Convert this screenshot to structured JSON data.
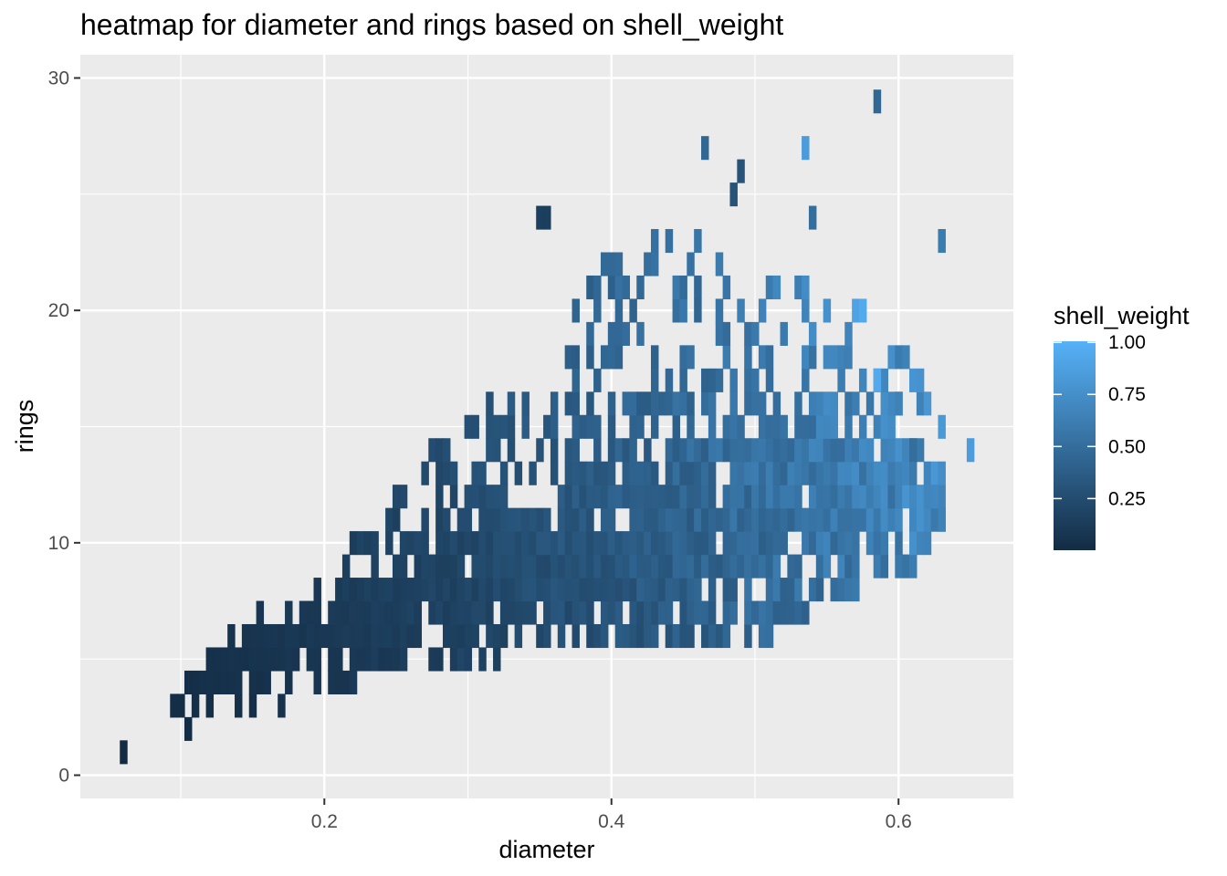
{
  "chart_data": {
    "type": "heatmap",
    "title": "heatmap for diameter and rings based on shell_weight",
    "xlabel": "diameter",
    "ylabel": "rings",
    "xlim": [
      0.03,
      0.68
    ],
    "ylim": [
      -1,
      31
    ],
    "x_ticks": [
      0.2,
      0.4,
      0.6
    ],
    "x_tick_labels": [
      "0.2",
      "0.4",
      "0.6"
    ],
    "y_ticks": [
      0,
      10,
      20,
      30
    ],
    "y_tick_labels": [
      "0",
      "10",
      "20",
      "30"
    ],
    "grid": true,
    "bin_width": 0.005,
    "bin_height": 1,
    "legend": {
      "title": "shell_weight",
      "placement": "right",
      "min": 0.002,
      "max": 1.005,
      "breaks": [
        0.25,
        0.5,
        0.75,
        1.0
      ],
      "break_labels": [
        "0.25",
        "0.50",
        "0.75",
        "1.00"
      ],
      "low_color": "#132B43",
      "high_color": "#56B1F7"
    },
    "ridge": {
      "diameter": [
        0.055,
        0.1,
        0.15,
        0.2,
        0.25,
        0.3,
        0.35,
        0.4,
        0.45,
        0.5,
        0.55,
        0.6,
        0.65
      ],
      "rings_center": [
        1,
        3.5,
        5,
        6,
        7.5,
        8.5,
        9.5,
        10.5,
        11,
        11.5,
        12,
        12,
        13
      ],
      "rings_low": [
        1,
        2,
        3,
        4,
        4,
        5,
        6,
        6,
        6,
        6,
        8,
        9,
        11
      ],
      "rings_high": [
        1,
        4,
        7,
        8,
        12,
        15,
        17,
        22,
        23,
        22,
        20,
        18,
        15
      ],
      "shell_weight": [
        0.01,
        0.03,
        0.06,
        0.1,
        0.15,
        0.2,
        0.28,
        0.35,
        0.42,
        0.5,
        0.58,
        0.65,
        0.75
      ]
    },
    "outliers": [
      {
        "diameter": 0.585,
        "rings": 29,
        "shell_weight": 0.45
      },
      {
        "diameter": 0.465,
        "rings": 27,
        "shell_weight": 0.45
      },
      {
        "diameter": 0.535,
        "rings": 27,
        "shell_weight": 0.85
      },
      {
        "diameter": 0.49,
        "rings": 26,
        "shell_weight": 0.3
      },
      {
        "diameter": 0.485,
        "rings": 25,
        "shell_weight": 0.3
      },
      {
        "diameter": 0.54,
        "rings": 24,
        "shell_weight": 0.5
      },
      {
        "diameter": 0.63,
        "rings": 23,
        "shell_weight": 0.6
      },
      {
        "diameter": 0.65,
        "rings": 14,
        "shell_weight": 0.85
      },
      {
        "diameter": 0.57,
        "rings": 20,
        "shell_weight": 0.9
      },
      {
        "diameter": 0.575,
        "rings": 20,
        "shell_weight": 0.95
      },
      {
        "diameter": 0.585,
        "rings": 17,
        "shell_weight": 0.95
      },
      {
        "diameter": 0.595,
        "rings": 16,
        "shell_weight": 0.7
      },
      {
        "diameter": 0.6,
        "rings": 16,
        "shell_weight": 0.65
      },
      {
        "diameter": 0.61,
        "rings": 14,
        "shell_weight": 0.5
      },
      {
        "diameter": 0.625,
        "rings": 12,
        "shell_weight": 0.7
      },
      {
        "diameter": 0.63,
        "rings": 11,
        "shell_weight": 0.65
      },
      {
        "diameter": 0.06,
        "rings": 1,
        "shell_weight": 0.002
      },
      {
        "diameter": 0.105,
        "rings": 2,
        "shell_weight": 0.02
      },
      {
        "diameter": 0.35,
        "rings": 24,
        "shell_weight": 0.15
      },
      {
        "diameter": 0.355,
        "rings": 24,
        "shell_weight": 0.15
      }
    ]
  }
}
